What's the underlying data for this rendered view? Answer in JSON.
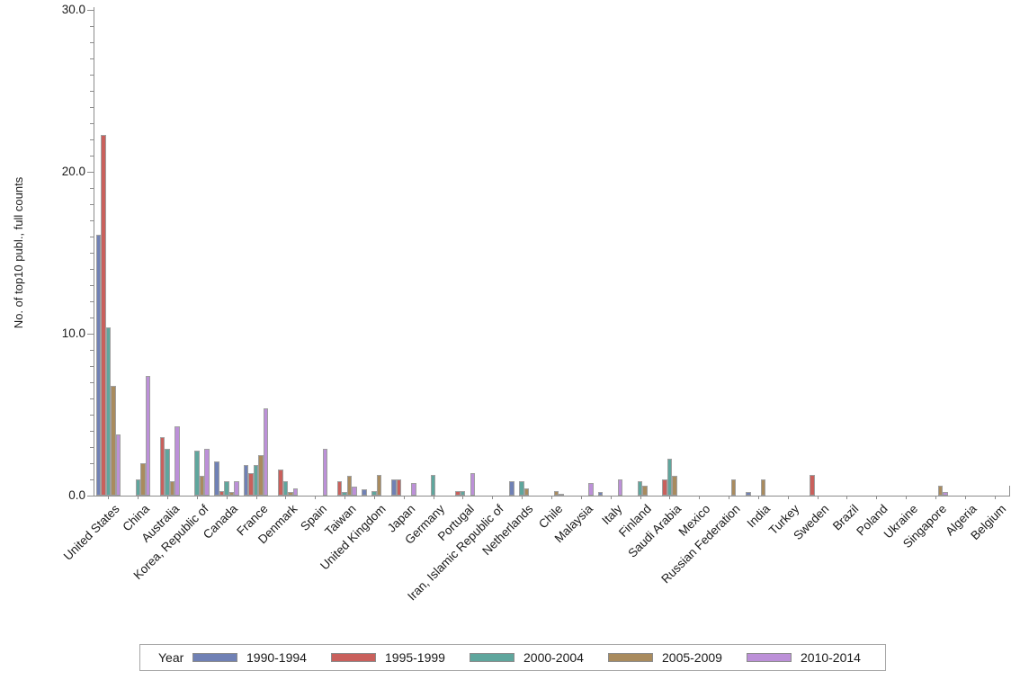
{
  "chart_data": {
    "type": "bar",
    "title": "",
    "xlabel": "",
    "ylabel": "No. of top10 publ., full counts",
    "ylim": [
      0,
      30
    ],
    "y_major_ticks": [
      0,
      10,
      20,
      30
    ],
    "y_tick_labels": [
      "0.0",
      "10.0",
      "20.0",
      "30.0"
    ],
    "y_minor_tick_step": 1,
    "grid": false,
    "legend_position": "bottom",
    "legend_title": "Year",
    "colors": {
      "axis": "#8C8C8C",
      "bar_border": "#A0A0A0",
      "legend_border": "#A6A6A6"
    },
    "categories": [
      "United States",
      "China",
      "Australia",
      "Korea, Republic of",
      "Canada",
      "France",
      "Denmark",
      "Spain",
      "Taiwan",
      "United Kingdom",
      "Japan",
      "Germany",
      "Portugal",
      "Iran, Islamic Republic of",
      "Netherlands",
      "Chile",
      "Malaysia",
      "Italy",
      "Finland",
      "Saudi Arabia",
      "Mexico",
      "Russian Federation",
      "India",
      "Turkey",
      "Sweden",
      "Brazil",
      "Poland",
      "Ukraine",
      "Singapore",
      "Algeria",
      "Belgium"
    ],
    "series": [
      {
        "name": "1990-1994",
        "color": "#7081B5",
        "values": [
          16.1,
          0,
          0,
          0,
          2.1,
          1.9,
          0,
          0,
          0,
          0.4,
          1.0,
          0,
          0,
          0,
          0.9,
          0,
          0,
          0.2,
          0,
          0,
          0,
          0,
          0.2,
          0,
          0,
          0,
          0,
          0,
          0,
          0,
          0
        ]
      },
      {
        "name": "1995-1999",
        "color": "#C9605C",
        "values": [
          22.3,
          0,
          3.6,
          0,
          0.3,
          1.4,
          1.6,
          0,
          0.9,
          0,
          1.0,
          0,
          0.25,
          0,
          0,
          0,
          0,
          0,
          0,
          1.0,
          0,
          0,
          0,
          0,
          1.3,
          0,
          0,
          0,
          0,
          0,
          0
        ]
      },
      {
        "name": "2000-2004",
        "color": "#5FA69D",
        "values": [
          10.4,
          1.0,
          2.9,
          2.8,
          0.9,
          1.9,
          0.9,
          0,
          0.2,
          0.25,
          0,
          1.3,
          0.25,
          0,
          0.9,
          0,
          0,
          0,
          0.9,
          2.3,
          0,
          0,
          0,
          0,
          0,
          0,
          0,
          0,
          0,
          0,
          0
        ]
      },
      {
        "name": "2005-2009",
        "color": "#A98B5E",
        "values": [
          6.8,
          2.0,
          0.9,
          1.2,
          0.2,
          2.5,
          0.2,
          0,
          1.2,
          1.3,
          0,
          0,
          0,
          0,
          0.45,
          0.3,
          0,
          0,
          0.6,
          1.2,
          0,
          1.0,
          1.0,
          0,
          0,
          0,
          0,
          0,
          0.6,
          0,
          0
        ]
      },
      {
        "name": "2010-2014",
        "color": "#BC90D8",
        "values": [
          3.8,
          7.4,
          4.3,
          2.9,
          0.9,
          5.4,
          0.45,
          2.9,
          0.55,
          0,
          0.8,
          0,
          1.4,
          0,
          0,
          0.1,
          0.75,
          1.0,
          0,
          0,
          0,
          0,
          0,
          0,
          0,
          0,
          0,
          0,
          0.2,
          0,
          0
        ]
      }
    ]
  }
}
